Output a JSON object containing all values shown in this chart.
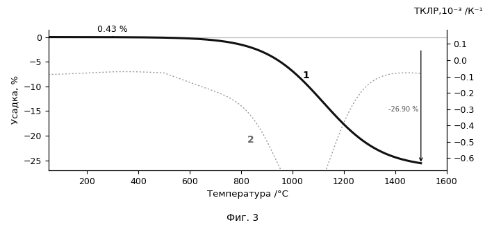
{
  "title_right": "ТКЛР,10⁻³ /К⁻¹",
  "xlabel": "Температура /°С",
  "ylabel_left": "Усадка, %",
  "fig_label": "Фиг. 3",
  "annotation_top": "0.43 %",
  "annotation_mid": "-26.90 %",
  "label_1": "1",
  "label_2": "2",
  "xlim": [
    50,
    1600
  ],
  "ylim_left": [
    -27,
    1.5
  ],
  "ylim_right": [
    -0.675,
    0.1875
  ],
  "xticks": [
    200,
    400,
    600,
    800,
    1000,
    1200,
    1400,
    1600
  ],
  "yticks_left": [
    0,
    -5,
    -10,
    -15,
    -20,
    -25
  ],
  "yticks_right": [
    0.1,
    0.0,
    -0.1,
    -0.2,
    -0.3,
    -0.4,
    -0.5,
    -0.6
  ],
  "background_color": "#ffffff",
  "curve1_color": "#111111",
  "curve2_color": "#999999",
  "hline_color": "#bbbbbb"
}
